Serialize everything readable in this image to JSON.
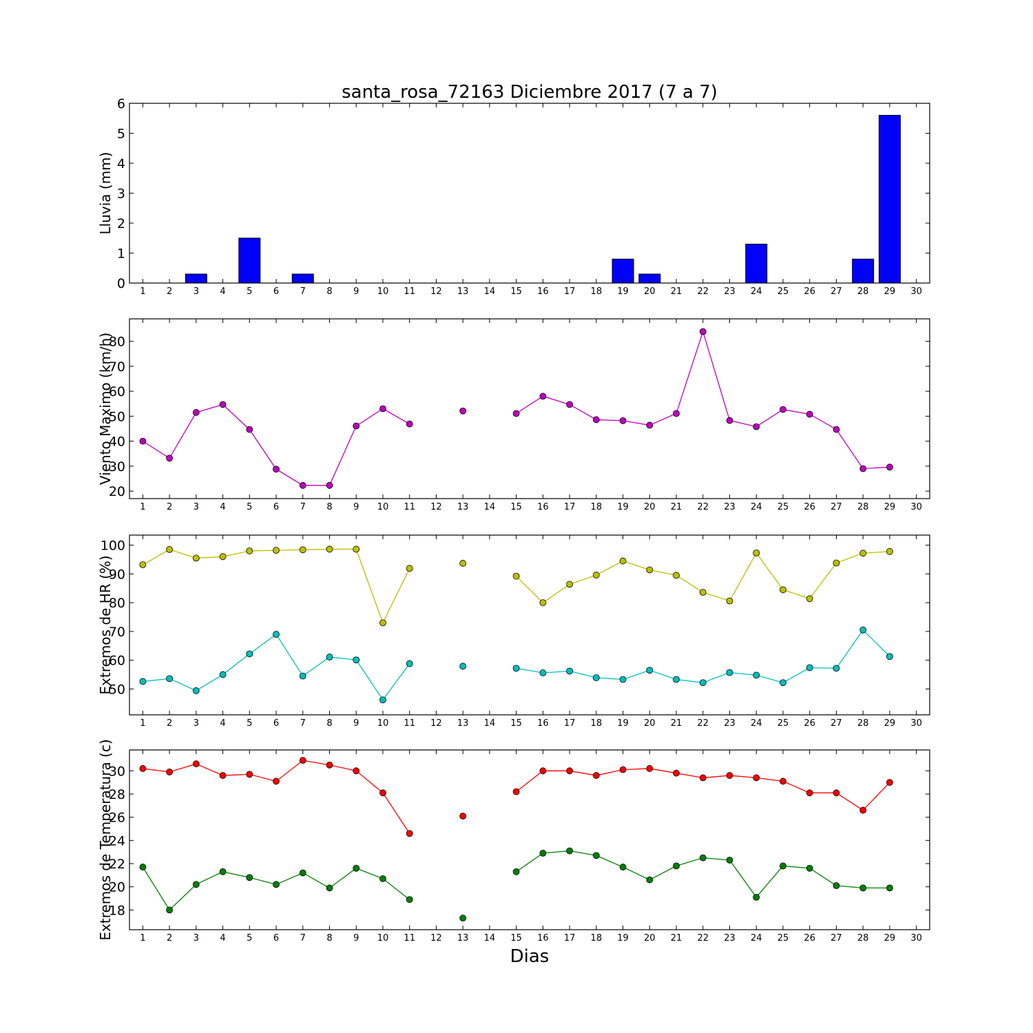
{
  "figure": {
    "title": "santa_rosa_72163 Diciembre 2017  (7 a 7)",
    "xlabel": "Dias"
  },
  "chart_data": [
    {
      "type": "bar",
      "ylabel": "Lluvia (mm)",
      "x": [
        1,
        2,
        3,
        4,
        5,
        6,
        7,
        8,
        9,
        10,
        11,
        12,
        13,
        14,
        15,
        16,
        17,
        18,
        19,
        20,
        21,
        22,
        23,
        24,
        25,
        26,
        27,
        28,
        29
      ],
      "xticks": [
        1,
        2,
        3,
        4,
        5,
        6,
        7,
        8,
        9,
        10,
        11,
        12,
        13,
        14,
        15,
        16,
        17,
        18,
        19,
        20,
        21,
        22,
        23,
        24,
        25,
        26,
        27,
        28,
        29,
        30
      ],
      "xlim": [
        0.5,
        30.5
      ],
      "ylim": [
        0,
        6
      ],
      "yticks": [
        0,
        1,
        2,
        3,
        4,
        5,
        6
      ],
      "series": [
        {
          "color": "#0000ff",
          "values": [
            0,
            0,
            0.3,
            0,
            1.5,
            0,
            0.3,
            0,
            0,
            0,
            0,
            0,
            0,
            0,
            0,
            0,
            0,
            0,
            0.8,
            0.3,
            0,
            0,
            0,
            1.3,
            0,
            0,
            0,
            0.8,
            5.6
          ]
        }
      ]
    },
    {
      "type": "line",
      "ylabel": "Viento Maximo (km/h)",
      "x": [
        1,
        2,
        3,
        4,
        5,
        6,
        7,
        8,
        9,
        10,
        11,
        12,
        13,
        14,
        15,
        16,
        17,
        18,
        19,
        20,
        21,
        22,
        23,
        24,
        25,
        26,
        27,
        28,
        29
      ],
      "xticks": [
        1,
        2,
        3,
        4,
        5,
        6,
        7,
        8,
        9,
        10,
        11,
        12,
        13,
        14,
        15,
        16,
        17,
        18,
        19,
        20,
        21,
        22,
        23,
        24,
        25,
        26,
        27,
        28,
        29,
        30
      ],
      "xlim": [
        0.5,
        30.5
      ],
      "ylim": [
        17,
        89
      ],
      "yticks": [
        20,
        30,
        40,
        50,
        60,
        70,
        80
      ],
      "series": [
        {
          "color": "#bf00bf",
          "values": [
            40,
            33.2,
            51.5,
            54.7,
            44.7,
            28.8,
            22.3,
            22.3,
            46.1,
            53,
            46.9,
            null,
            52.1,
            null,
            51.1,
            58,
            54.7,
            48.6,
            48.2,
            46.4,
            51.1,
            83.9,
            48.3,
            45.8,
            52.7,
            50.8,
            44.7,
            29,
            29.6
          ]
        }
      ]
    },
    {
      "type": "line",
      "ylabel": "Extremos de HR (%)",
      "x": [
        1,
        2,
        3,
        4,
        5,
        6,
        7,
        8,
        9,
        10,
        11,
        12,
        13,
        14,
        15,
        16,
        17,
        18,
        19,
        20,
        21,
        22,
        23,
        24,
        25,
        26,
        27,
        28,
        29
      ],
      "xticks": [
        1,
        2,
        3,
        4,
        5,
        6,
        7,
        8,
        9,
        10,
        11,
        12,
        13,
        14,
        15,
        16,
        17,
        18,
        19,
        20,
        21,
        22,
        23,
        24,
        25,
        26,
        27,
        28,
        29,
        30
      ],
      "xlim": [
        0.5,
        30.5
      ],
      "ylim": [
        41,
        103.5
      ],
      "yticks": [
        50,
        60,
        70,
        80,
        90,
        100
      ],
      "series": [
        {
          "color": "#bfbf00",
          "values": [
            93.2,
            98.5,
            95.5,
            96,
            98,
            98.2,
            98.4,
            98.6,
            98.6,
            73,
            91.9,
            null,
            93.7,
            null,
            89.2,
            80,
            86.4,
            89.6,
            94.5,
            91.4,
            89.5,
            83.6,
            80.6,
            97.3,
            84.5,
            81.4,
            93.8,
            97.2,
            97.8
          ]
        },
        {
          "color": "#00bfbf",
          "values": [
            52.6,
            53.6,
            49.4,
            55,
            62.2,
            69,
            54.5,
            61.1,
            60.1,
            46.2,
            58.8,
            null,
            57.9,
            null,
            57.2,
            55.6,
            56.2,
            53.9,
            53.3,
            56.5,
            53.3,
            52.2,
            55.7,
            54.8,
            52.2,
            57.4,
            57.2,
            70.5,
            61.3
          ]
        }
      ]
    },
    {
      "type": "line",
      "ylabel": "Extremos de Temperatura (c)",
      "x": [
        1,
        2,
        3,
        4,
        5,
        6,
        7,
        8,
        9,
        10,
        11,
        12,
        13,
        14,
        15,
        16,
        17,
        18,
        19,
        20,
        21,
        22,
        23,
        24,
        25,
        26,
        27,
        28,
        29
      ],
      "xticks": [
        1,
        2,
        3,
        4,
        5,
        6,
        7,
        8,
        9,
        10,
        11,
        12,
        13,
        14,
        15,
        16,
        17,
        18,
        19,
        20,
        21,
        22,
        23,
        24,
        25,
        26,
        27,
        28,
        29,
        30
      ],
      "xlim": [
        0.5,
        30.5
      ],
      "ylim": [
        16.3,
        31.8
      ],
      "yticks": [
        18,
        20,
        22,
        24,
        26,
        28,
        30
      ],
      "series": [
        {
          "color": "#ff0000",
          "values": [
            30.2,
            29.9,
            30.6,
            29.6,
            29.7,
            29.1,
            30.9,
            30.5,
            30,
            28.1,
            24.6,
            null,
            26.1,
            null,
            28.2,
            30,
            30,
            29.6,
            30.1,
            30.2,
            29.8,
            29.4,
            29.6,
            29.4,
            29.1,
            28.1,
            28.1,
            26.6,
            29
          ]
        },
        {
          "color": "#008000",
          "values": [
            21.7,
            18,
            20.2,
            21.3,
            20.8,
            20.2,
            21.2,
            19.9,
            21.6,
            20.7,
            18.9,
            null,
            17.3,
            null,
            21.3,
            22.9,
            23.1,
            22.7,
            21.7,
            20.6,
            21.8,
            22.5,
            22.3,
            19.1,
            21.8,
            21.6,
            20.1,
            19.9,
            19.9
          ]
        }
      ]
    }
  ]
}
